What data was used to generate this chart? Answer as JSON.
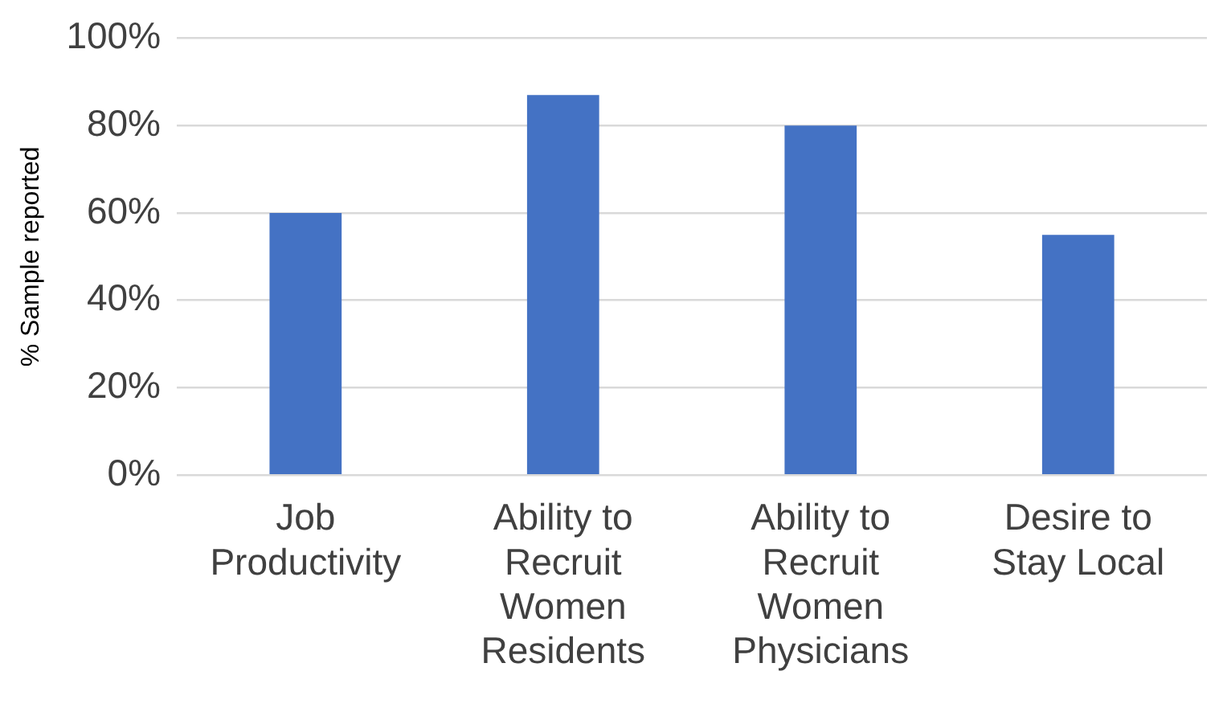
{
  "chart_data": {
    "type": "bar",
    "ylabel": "% Sample reported",
    "categories": [
      "Job Productivity",
      "Ability to Recruit Women Residents",
      "Ability to Recruit Women Physicians",
      "Desire to Stay Local"
    ],
    "values": [
      60,
      87,
      80,
      55
    ],
    "color": "#4472c4",
    "ylim": [
      0,
      100
    ],
    "yticks": [
      {
        "value": 0,
        "label": "0%"
      },
      {
        "value": 20,
        "label": "20%"
      },
      {
        "value": 40,
        "label": "40%"
      },
      {
        "value": 60,
        "label": "60%"
      },
      {
        "value": 80,
        "label": "80%"
      },
      {
        "value": 100,
        "label": "100%"
      }
    ],
    "grid": "y",
    "legend": false
  }
}
